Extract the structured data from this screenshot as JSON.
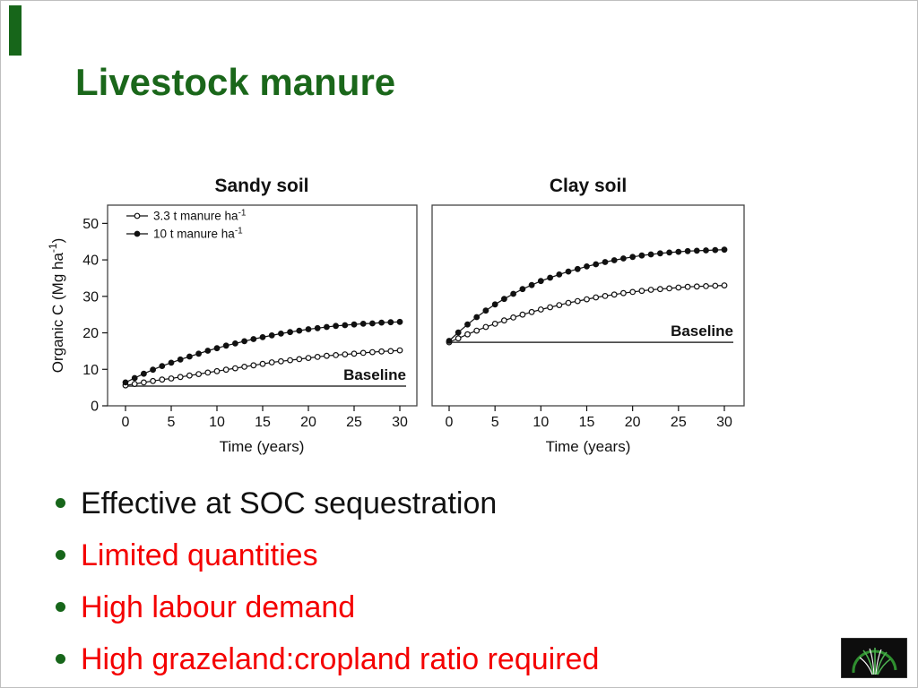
{
  "slide": {
    "title": "Livestock manure",
    "title_color": "#1A671A",
    "accent_bar_color": "#17661A",
    "background": "#FFFFFF"
  },
  "bullets": {
    "bullet_color": "#17661A",
    "items": [
      {
        "text": "Effective at SOC sequestration",
        "color": "#111111"
      },
      {
        "text": "Limited quantities",
        "color": "#F40000"
      },
      {
        "text": "High labour demand",
        "color": "#F40000"
      },
      {
        "text": "High grazeland:cropland ratio required",
        "color": "#F40000"
      }
    ]
  },
  "chart_data": [
    {
      "type": "line",
      "title": "Sandy soil",
      "xlabel": "Time (years)",
      "ylabel": {
        "text": "Organic C (Mg ha",
        "sup": "-1",
        "suffix": ")"
      },
      "xlim": [
        0,
        30
      ],
      "ylim": [
        0,
        55
      ],
      "xticks": [
        0,
        5,
        10,
        15,
        20,
        25,
        30
      ],
      "yticks": [
        0,
        10,
        20,
        30,
        40,
        50
      ],
      "x_step_years": 1,
      "grid": false,
      "legend": {
        "visible": true,
        "position": "top-left"
      },
      "baseline": {
        "label": "Baseline",
        "value": 5.4
      },
      "series": [
        {
          "name": "3.3 t manure ha",
          "name_sup": "-1",
          "marker": "open-circle",
          "color": "#111111",
          "values": [
            5.6,
            6.0,
            6.4,
            6.8,
            7.2,
            7.5,
            7.9,
            8.3,
            8.7,
            9.1,
            9.5,
            9.9,
            10.3,
            10.7,
            11.1,
            11.5,
            11.9,
            12.2,
            12.5,
            12.8,
            13.1,
            13.4,
            13.7,
            13.9,
            14.1,
            14.3,
            14.5,
            14.7,
            14.9,
            15.0,
            15.2
          ]
        },
        {
          "name": "10 t manure ha",
          "name_sup": "-1",
          "marker": "filled-circle",
          "color": "#111111",
          "values": [
            6.4,
            7.6,
            8.8,
            9.9,
            10.9,
            11.8,
            12.7,
            13.5,
            14.3,
            15.1,
            15.8,
            16.5,
            17.1,
            17.7,
            18.3,
            18.8,
            19.3,
            19.8,
            20.2,
            20.6,
            21.0,
            21.3,
            21.6,
            21.9,
            22.1,
            22.3,
            22.5,
            22.6,
            22.8,
            22.9,
            23.0
          ]
        }
      ]
    },
    {
      "type": "line",
      "title": "Clay soil",
      "xlabel": "Time (years)",
      "ylabel": null,
      "xlim": [
        0,
        30
      ],
      "ylim": [
        0,
        55
      ],
      "xticks": [
        0,
        5,
        10,
        15,
        20,
        25,
        30
      ],
      "yticks": [],
      "x_step_years": 1,
      "grid": false,
      "legend": {
        "visible": false
      },
      "baseline": {
        "label": "Baseline",
        "value": 17.4
      },
      "series": [
        {
          "name": "3.3 t manure ha",
          "name_sup": "-1",
          "marker": "open-circle",
          "color": "#111111",
          "values": [
            17.4,
            18.5,
            19.6,
            20.6,
            21.6,
            22.5,
            23.4,
            24.2,
            25.0,
            25.7,
            26.4,
            27.0,
            27.6,
            28.2,
            28.7,
            29.2,
            29.7,
            30.1,
            30.5,
            30.9,
            31.2,
            31.5,
            31.8,
            32.0,
            32.2,
            32.4,
            32.6,
            32.7,
            32.8,
            32.9,
            33.0
          ]
        },
        {
          "name": "10 t manure ha",
          "name_sup": "-1",
          "marker": "filled-circle",
          "color": "#111111",
          "values": [
            17.8,
            20.1,
            22.3,
            24.3,
            26.1,
            27.8,
            29.3,
            30.7,
            32.0,
            33.1,
            34.2,
            35.1,
            36.0,
            36.8,
            37.5,
            38.2,
            38.8,
            39.4,
            39.9,
            40.4,
            40.8,
            41.2,
            41.5,
            41.8,
            42.0,
            42.2,
            42.4,
            42.5,
            42.6,
            42.7,
            42.8
          ]
        }
      ]
    }
  ],
  "logo": {
    "background": "#0D0D0D",
    "arc_color": "#2F8F2F",
    "grass_colors": [
      "#4CAF50",
      "#FFFFFF"
    ]
  }
}
